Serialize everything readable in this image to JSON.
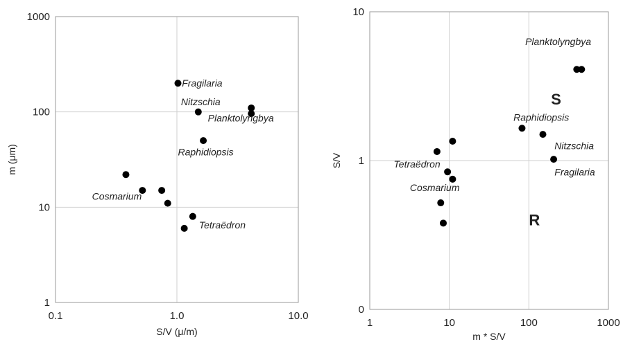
{
  "chart_data": [
    {
      "type": "scatter",
      "title": "",
      "xlabel": "S/V  (μ/m)",
      "ylabel": "m (μm)",
      "xscale": "log",
      "yscale": "log",
      "xlim": [
        0.1,
        10.0
      ],
      "ylim": [
        1,
        1000
      ],
      "xticks": [
        {
          "value": 0.1,
          "label": "0.1"
        },
        {
          "value": 1.0,
          "label": "1.0"
        },
        {
          "value": 10.0,
          "label": "10.0"
        }
      ],
      "yticks": [
        {
          "value": 1,
          "label": "1"
        },
        {
          "value": 10,
          "label": "10"
        },
        {
          "value": 100,
          "label": "100"
        },
        {
          "value": 1000,
          "label": "1000"
        }
      ],
      "grid": true,
      "marker_color": "#000000",
      "points": [
        {
          "x": 1.02,
          "y": 200
        },
        {
          "x": 1.5,
          "y": 100
        },
        {
          "x": 4.1,
          "y": 110
        },
        {
          "x": 4.1,
          "y": 96
        },
        {
          "x": 1.65,
          "y": 50
        },
        {
          "x": 0.38,
          "y": 22
        },
        {
          "x": 0.52,
          "y": 15
        },
        {
          "x": 0.75,
          "y": 15
        },
        {
          "x": 0.84,
          "y": 11
        },
        {
          "x": 1.35,
          "y": 8
        },
        {
          "x": 1.15,
          "y": 6
        }
      ],
      "annotations": [
        {
          "text": "Fragilaria",
          "x": 1.1,
          "y": 200
        },
        {
          "text": "Nitzschia",
          "x": 1.08,
          "y": 128
        },
        {
          "text": "Planktolyngbya",
          "x": 1.8,
          "y": 86
        },
        {
          "text": "Raphidiopsis",
          "x": 1.02,
          "y": 38
        },
        {
          "text": "Cosmarium",
          "x": 0.2,
          "y": 13
        },
        {
          "text": "Tetraëdron",
          "x": 1.52,
          "y": 6.5
        }
      ]
    },
    {
      "type": "scatter",
      "title": "",
      "xlabel": "m * S/V",
      "ylabel": "S/V",
      "xscale": "log",
      "yscale": "log",
      "xlim": [
        1,
        1000
      ],
      "ylim_ticks": [
        "0",
        "1",
        "10"
      ],
      "xticks": [
        {
          "value": 1,
          "label": "1"
        },
        {
          "value": 10,
          "label": "10"
        },
        {
          "value": 100,
          "label": "100"
        },
        {
          "value": 1000,
          "label": "1000"
        }
      ],
      "yticks": [
        {
          "value": 0.1,
          "label": "0"
        },
        {
          "value": 1,
          "label": "1"
        },
        {
          "value": 10,
          "label": "10"
        }
      ],
      "grid": true,
      "marker_color": "#000000",
      "points": [
        {
          "x": 400,
          "y": 4.1
        },
        {
          "x": 460,
          "y": 4.1
        },
        {
          "x": 82,
          "y": 1.65
        },
        {
          "x": 150,
          "y": 1.5
        },
        {
          "x": 205,
          "y": 1.02
        },
        {
          "x": 11,
          "y": 1.35
        },
        {
          "x": 7,
          "y": 1.15
        },
        {
          "x": 9.5,
          "y": 0.84
        },
        {
          "x": 11,
          "y": 0.75
        },
        {
          "x": 7.8,
          "y": 0.52
        },
        {
          "x": 8.4,
          "y": 0.38
        }
      ],
      "annotations": [
        {
          "text": "Planktolyngbya",
          "x": 90,
          "y": 6.3
        },
        {
          "text": "Raphidiopsis",
          "x": 64,
          "y": 1.95
        },
        {
          "text": "Nitzschia",
          "x": 210,
          "y": 1.26
        },
        {
          "text": "Fragilaria",
          "x": 210,
          "y": 0.84
        },
        {
          "text": "Tetraëdron",
          "x": 2.0,
          "y": 0.95
        },
        {
          "text": "Cosmarium",
          "x": 3.2,
          "y": 0.66
        }
      ],
      "regions": [
        {
          "text": "S",
          "x": 190,
          "y": 2.6
        },
        {
          "text": "R",
          "x": 100,
          "y": 0.4
        }
      ]
    }
  ]
}
